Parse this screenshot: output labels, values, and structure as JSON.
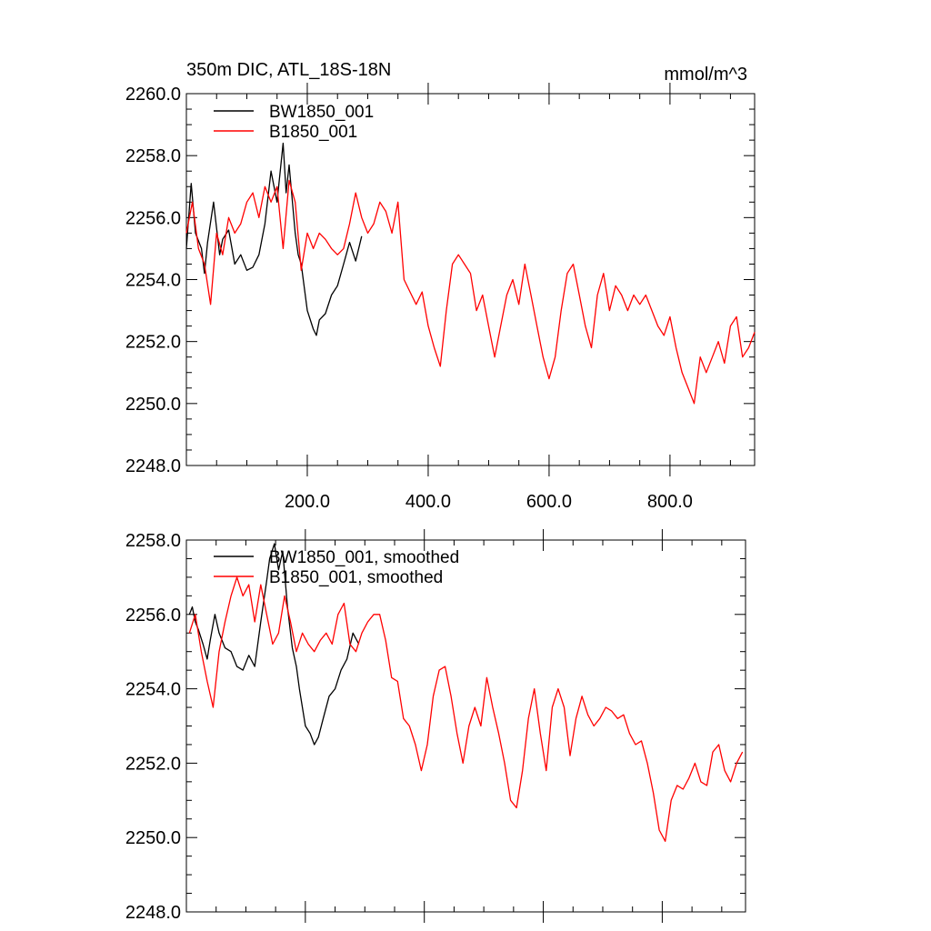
{
  "chart_data": [
    {
      "type": "line",
      "title": "350m DIC, ATL_18S-18N",
      "units": "mmol/m^3",
      "xlim": [
        0,
        940
      ],
      "ylim": [
        2248,
        2260
      ],
      "x_ticks": [
        200,
        400,
        600,
        800
      ],
      "x_tick_labels": [
        "200.0",
        "400.0",
        "600.0",
        "800.0"
      ],
      "y_ticks": [
        2248,
        2250,
        2252,
        2254,
        2256,
        2258,
        2260
      ],
      "y_tick_labels": [
        "2248.0",
        "2250.0",
        "2252.0",
        "2254.0",
        "2256.0",
        "2258.0",
        "2260.0"
      ],
      "legend_position": "top-left",
      "series": [
        {
          "name": "BW1850_001",
          "color": "#000000",
          "x": [
            0,
            8,
            15,
            25,
            30,
            35,
            45,
            55,
            60,
            70,
            80,
            90,
            100,
            110,
            120,
            130,
            140,
            150,
            160,
            165,
            170,
            180,
            185,
            190,
            200,
            210,
            215,
            220,
            230,
            240,
            250,
            260,
            270,
            280,
            290
          ],
          "values": [
            2255.0,
            2257.1,
            2255.5,
            2255.0,
            2254.2,
            2255.2,
            2256.5,
            2254.8,
            2255.3,
            2255.6,
            2254.5,
            2254.8,
            2254.3,
            2254.4,
            2254.8,
            2255.8,
            2257.5,
            2256.5,
            2258.4,
            2256.8,
            2257.7,
            2255.5,
            2254.8,
            2254.5,
            2253.0,
            2252.4,
            2252.2,
            2252.7,
            2252.9,
            2253.5,
            2253.8,
            2254.5,
            2255.2,
            2254.6,
            2255.4
          ]
        },
        {
          "name": "B1850_001",
          "color": "#ff0000",
          "x": [
            0,
            10,
            20,
            30,
            40,
            50,
            60,
            70,
            80,
            90,
            100,
            110,
            120,
            130,
            140,
            150,
            160,
            170,
            180,
            190,
            200,
            210,
            220,
            230,
            240,
            250,
            260,
            270,
            280,
            290,
            300,
            310,
            320,
            330,
            340,
            350,
            360,
            370,
            380,
            390,
            400,
            410,
            420,
            430,
            440,
            450,
            460,
            470,
            480,
            490,
            500,
            510,
            520,
            530,
            540,
            550,
            560,
            570,
            580,
            590,
            600,
            610,
            620,
            630,
            640,
            650,
            660,
            670,
            680,
            690,
            700,
            710,
            720,
            730,
            740,
            750,
            760,
            770,
            780,
            790,
            800,
            810,
            820,
            830,
            840,
            850,
            860,
            870,
            880,
            890,
            900,
            910,
            920,
            930,
            940
          ],
          "values": [
            2255.5,
            2256.5,
            2255.0,
            2254.5,
            2253.2,
            2255.5,
            2254.8,
            2256.0,
            2255.5,
            2255.8,
            2256.5,
            2256.8,
            2256.0,
            2257.0,
            2256.5,
            2257.0,
            2255.0,
            2257.2,
            2256.5,
            2254.3,
            2255.5,
            2255.0,
            2255.5,
            2255.3,
            2255.0,
            2254.8,
            2255.0,
            2255.8,
            2256.8,
            2256.0,
            2255.5,
            2255.8,
            2256.5,
            2256.2,
            2255.5,
            2256.5,
            2254.0,
            2253.6,
            2253.2,
            2253.6,
            2252.5,
            2251.8,
            2251.2,
            2253.0,
            2254.5,
            2254.8,
            2254.5,
            2254.2,
            2253.0,
            2253.5,
            2252.5,
            2251.5,
            2252.5,
            2253.5,
            2254.0,
            2253.2,
            2254.5,
            2253.5,
            2252.5,
            2251.5,
            2250.8,
            2251.5,
            2253.0,
            2254.2,
            2254.5,
            2253.5,
            2252.5,
            2251.8,
            2253.5,
            2254.2,
            2253.0,
            2253.8,
            2253.5,
            2253.0,
            2253.5,
            2253.2,
            2253.5,
            2253.0,
            2252.5,
            2252.2,
            2252.8,
            2251.8,
            2251.0,
            2250.5,
            2250.0,
            2251.5,
            2251.0,
            2251.5,
            2252.0,
            2251.3,
            2252.5,
            2252.8,
            2251.5,
            2251.8,
            2252.3
          ]
        }
      ]
    },
    {
      "type": "line",
      "title": "",
      "xlim": [
        0,
        940
      ],
      "ylim": [
        2248,
        2258
      ],
      "x_ticks": [
        200,
        400,
        600,
        800
      ],
      "x_tick_labels": [],
      "y_ticks": [
        2248,
        2250,
        2252,
        2254,
        2256,
        2258
      ],
      "y_tick_labels": [
        "2248.0",
        "2250.0",
        "2252.0",
        "2254.0",
        "2256.0",
        "2258.0"
      ],
      "legend_position": "top-left",
      "series": [
        {
          "name": "BW1850_001, smoothed",
          "color": "#000000",
          "x": [
            5,
            10,
            15,
            20,
            28,
            35,
            40,
            48,
            55,
            65,
            75,
            85,
            95,
            105,
            115,
            125,
            135,
            140,
            148,
            155,
            162,
            170,
            178,
            185,
            190,
            200,
            208,
            215,
            222,
            230,
            240,
            250,
            260,
            270,
            280,
            290
          ],
          "values": [
            2256.0,
            2256.2,
            2255.8,
            2255.6,
            2255.2,
            2254.8,
            2255.3,
            2256.0,
            2255.5,
            2255.1,
            2255.0,
            2254.6,
            2254.5,
            2254.9,
            2254.6,
            2255.8,
            2256.9,
            2257.5,
            2257.9,
            2257.2,
            2257.7,
            2256.2,
            2255.1,
            2254.6,
            2254.0,
            2253.0,
            2252.8,
            2252.5,
            2252.7,
            2253.2,
            2253.8,
            2254.0,
            2254.5,
            2254.8,
            2255.5,
            2255.2
          ]
        },
        {
          "name": "B1850_001, smoothed",
          "color": "#ff0000",
          "x": [
            5,
            15,
            25,
            35,
            45,
            55,
            65,
            75,
            85,
            95,
            105,
            115,
            125,
            135,
            145,
            155,
            165,
            175,
            185,
            195,
            205,
            215,
            225,
            235,
            245,
            255,
            265,
            275,
            285,
            295,
            305,
            315,
            325,
            335,
            345,
            355,
            365,
            375,
            385,
            395,
            405,
            415,
            425,
            435,
            445,
            455,
            465,
            475,
            485,
            495,
            505,
            515,
            525,
            535,
            545,
            555,
            565,
            575,
            585,
            595,
            605,
            615,
            625,
            635,
            645,
            655,
            665,
            675,
            685,
            695,
            705,
            715,
            725,
            735,
            745,
            755,
            765,
            775,
            785,
            795,
            805,
            815,
            825,
            835,
            845,
            855,
            865,
            875,
            885,
            895,
            905,
            915,
            925,
            935
          ],
          "values": [
            2255.5,
            2256.0,
            2255.0,
            2254.2,
            2253.5,
            2255.0,
            2255.8,
            2256.5,
            2257.0,
            2256.5,
            2256.8,
            2255.8,
            2256.8,
            2256.0,
            2255.2,
            2255.5,
            2256.5,
            2255.8,
            2255.0,
            2255.5,
            2255.2,
            2255.0,
            2255.3,
            2255.5,
            2255.2,
            2256.0,
            2256.3,
            2255.2,
            2255.0,
            2255.5,
            2255.8,
            2256.0,
            2256.0,
            2255.3,
            2254.3,
            2254.2,
            2253.2,
            2253.0,
            2252.5,
            2251.8,
            2252.5,
            2253.8,
            2254.5,
            2254.6,
            2253.8,
            2252.8,
            2252.0,
            2253.0,
            2253.5,
            2253.0,
            2254.3,
            2253.5,
            2252.8,
            2252.0,
            2251.0,
            2250.8,
            2251.8,
            2253.2,
            2254.0,
            2252.8,
            2251.8,
            2253.5,
            2254.0,
            2253.5,
            2252.2,
            2253.2,
            2253.8,
            2253.3,
            2253.0,
            2253.2,
            2253.5,
            2253.4,
            2253.2,
            2253.3,
            2252.8,
            2252.5,
            2252.6,
            2252.0,
            2251.2,
            2250.2,
            2249.9,
            2251.0,
            2251.4,
            2251.3,
            2251.6,
            2252.0,
            2251.5,
            2251.4,
            2252.3,
            2252.5,
            2251.8,
            2251.5,
            2252.0,
            2252.3
          ]
        }
      ]
    }
  ]
}
